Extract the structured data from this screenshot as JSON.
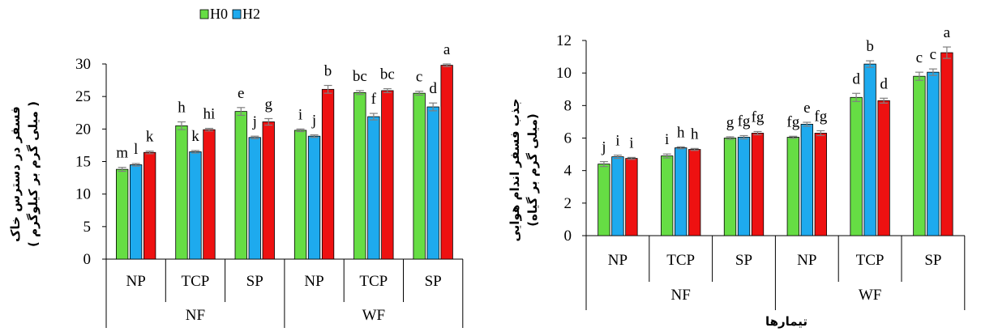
{
  "colors": {
    "H0": "#66dd44",
    "H2": "#1eaaee",
    "H3": "#ee1111",
    "error_bar": "#7f7f7f",
    "axis": "#000000"
  },
  "legend": {
    "items": [
      {
        "label": "H0",
        "color": "#66dd44"
      },
      {
        "label": "H2",
        "color": "#1eaaee"
      }
    ]
  },
  "chart_data": [
    {
      "type": "bar",
      "title": "",
      "ylabel_line1": "فسفر در دسترس خاک",
      "ylabel_line2": "( میلی گرم بر کیلوگرم )",
      "xlabel": "",
      "ylim": [
        0,
        30
      ],
      "yticks": [
        0,
        5,
        10,
        15,
        20,
        25,
        30
      ],
      "subcategories": [
        "NP",
        "TCP",
        "SP",
        "NP",
        "TCP",
        "SP"
      ],
      "groups": [
        "NF",
        "WF"
      ],
      "series": [
        {
          "name": "H0",
          "values": [
            13.8,
            20.5,
            22.7,
            19.8,
            25.6,
            25.5
          ]
        },
        {
          "name": "H2",
          "values": [
            14.5,
            16.5,
            18.7,
            18.9,
            21.9,
            23.4
          ]
        },
        {
          "name": "",
          "values": [
            16.4,
            19.9,
            21.1,
            26.1,
            25.9,
            29.8
          ]
        }
      ],
      "errors": [
        [
          0.3,
          0.6,
          0.6,
          0.2,
          0.3,
          0.3
        ],
        [
          0.2,
          0.2,
          0.2,
          0.2,
          0.5,
          0.6
        ],
        [
          0.2,
          0.2,
          0.5,
          0.6,
          0.3,
          0.2
        ]
      ],
      "letters": [
        [
          "m",
          "l",
          "k"
        ],
        [
          "h",
          "k",
          "hi"
        ],
        [
          "e",
          "j",
          "g"
        ],
        [
          "i",
          "j",
          "b"
        ],
        [
          "bc",
          "f",
          "bc"
        ],
        [
          "c",
          "d",
          "a"
        ]
      ]
    },
    {
      "type": "bar",
      "title": "",
      "ylabel_line1": "جذب فسفر اندام هوایی",
      "ylabel_line2": "(میلی گرم بر گیاه)",
      "xlabel": "تیمارها",
      "ylim": [
        0,
        12
      ],
      "yticks": [
        0,
        2,
        4,
        6,
        8,
        10,
        12
      ],
      "subcategories": [
        "NP",
        "TCP",
        "SP",
        "NP",
        "TCP",
        "SP"
      ],
      "groups": [
        "NF",
        "WF"
      ],
      "series": [
        {
          "name": "H0",
          "values": [
            4.4,
            4.9,
            6.0,
            6.05,
            8.5,
            9.8
          ]
        },
        {
          "name": "H2",
          "values": [
            4.85,
            5.4,
            6.05,
            6.85,
            10.55,
            10.05
          ]
        },
        {
          "name": "",
          "values": [
            4.75,
            5.3,
            6.3,
            6.3,
            8.3,
            11.25
          ]
        }
      ],
      "errors": [
        [
          0.15,
          0.12,
          0.08,
          0.06,
          0.25,
          0.25
        ],
        [
          0.1,
          0.06,
          0.1,
          0.12,
          0.2,
          0.2
        ],
        [
          0.06,
          0.06,
          0.1,
          0.15,
          0.15,
          0.35
        ]
      ],
      "letters": [
        [
          "j",
          "i",
          "i"
        ],
        [
          "i",
          "h",
          "h"
        ],
        [
          "g",
          "fg",
          "fg"
        ],
        [
          "fg",
          "e",
          "fg"
        ],
        [
          "d",
          "b",
          "d"
        ],
        [
          "c",
          "c",
          "a"
        ]
      ]
    }
  ]
}
